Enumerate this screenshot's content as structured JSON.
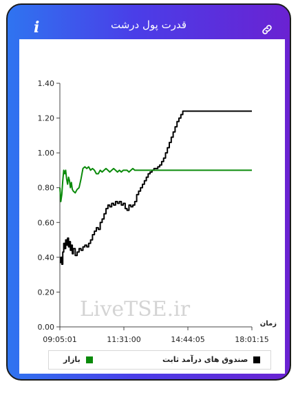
{
  "window": {
    "title": "قدرت پول درشت",
    "info_icon_glyph": "i",
    "info_icon": "info-icon",
    "link_icon": "link-icon"
  },
  "watermark": "LiveTSE.ir",
  "chart_data": {
    "type": "line",
    "xlabel": "زمان",
    "ylabel": "",
    "ylim": [
      0,
      1.4
    ],
    "yticks": [
      "0.00",
      "0.20",
      "0.40",
      "0.60",
      "0.80",
      "1.00",
      "1.20",
      "1.40"
    ],
    "xticks": [
      "09:05:01",
      "11:31:00",
      "14:44:05",
      "18:01:15"
    ],
    "xlim": [
      0,
      100
    ],
    "grid": false,
    "legend_position": "bottom",
    "series": [
      {
        "name": "صندوق های درآمد ثابت",
        "color": "#000000",
        "x": [
          0,
          0.5,
          1,
          1.5,
          2,
          2.5,
          3,
          3.5,
          4,
          4.5,
          5,
          5.5,
          6,
          6.5,
          7,
          8,
          9,
          10,
          11,
          12,
          13,
          14,
          15,
          16,
          17,
          18,
          19,
          20,
          21,
          22,
          23,
          24,
          25,
          26,
          27,
          28,
          29,
          30,
          31,
          32,
          33,
          34,
          35,
          36,
          37,
          38,
          39,
          40,
          41,
          42,
          43,
          44,
          45,
          46,
          47,
          48,
          49,
          50,
          51,
          52,
          53,
          54,
          55,
          56,
          57,
          58,
          59,
          60,
          61,
          62,
          63,
          64,
          65,
          66,
          67,
          68,
          69,
          70,
          71,
          72,
          73,
          74,
          75,
          100
        ],
        "y": [
          0.37,
          0.4,
          0.36,
          0.43,
          0.48,
          0.45,
          0.5,
          0.47,
          0.51,
          0.46,
          0.49,
          0.44,
          0.47,
          0.42,
          0.45,
          0.41,
          0.43,
          0.45,
          0.44,
          0.46,
          0.47,
          0.46,
          0.48,
          0.5,
          0.53,
          0.55,
          0.57,
          0.56,
          0.6,
          0.62,
          0.65,
          0.68,
          0.7,
          0.69,
          0.71,
          0.7,
          0.72,
          0.71,
          0.72,
          0.7,
          0.71,
          0.68,
          0.67,
          0.7,
          0.69,
          0.7,
          0.72,
          0.76,
          0.78,
          0.8,
          0.82,
          0.84,
          0.86,
          0.88,
          0.89,
          0.9,
          0.91,
          0.91,
          0.92,
          0.93,
          0.95,
          0.97,
          1.0,
          1.03,
          1.06,
          1.09,
          1.12,
          1.15,
          1.18,
          1.2,
          1.22,
          1.24,
          1.24,
          1.24,
          1.24,
          1.24,
          1.24,
          1.24,
          1.24,
          1.24,
          1.24,
          1.24,
          1.24,
          1.24
        ]
      },
      {
        "name": "بازار",
        "color": "#0a8a0a",
        "x": [
          0,
          0.5,
          1,
          1.5,
          2,
          2.5,
          3,
          3.5,
          4,
          4.5,
          5,
          5.5,
          6,
          6.5,
          7,
          8,
          9,
          10,
          11,
          12,
          13,
          14,
          15,
          16,
          17,
          18,
          19,
          20,
          21,
          22,
          23,
          24,
          25,
          26,
          27,
          28,
          29,
          30,
          31,
          32,
          33,
          34,
          35,
          36,
          37,
          38,
          39,
          40,
          45,
          50,
          55,
          60,
          65,
          70,
          75,
          80,
          85,
          90,
          95,
          100
        ],
        "y": [
          0.8,
          0.72,
          0.76,
          0.84,
          0.9,
          0.88,
          0.9,
          0.85,
          0.82,
          0.86,
          0.84,
          0.8,
          0.83,
          0.79,
          0.78,
          0.77,
          0.79,
          0.8,
          0.85,
          0.91,
          0.92,
          0.91,
          0.92,
          0.9,
          0.91,
          0.9,
          0.88,
          0.88,
          0.9,
          0.89,
          0.9,
          0.91,
          0.9,
          0.89,
          0.9,
          0.91,
          0.9,
          0.89,
          0.9,
          0.89,
          0.9,
          0.9,
          0.9,
          0.89,
          0.9,
          0.91,
          0.9,
          0.9,
          0.9,
          0.9,
          0.9,
          0.9,
          0.9,
          0.9,
          0.9,
          0.9,
          0.9,
          0.9,
          0.9,
          0.9
        ]
      }
    ]
  }
}
